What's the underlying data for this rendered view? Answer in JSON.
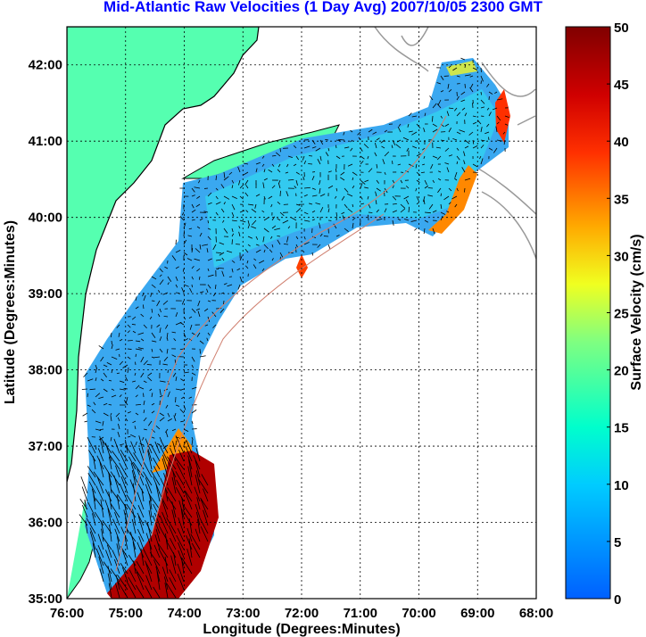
{
  "title": "Mid-Atlantic Raw Velocities (1 Day Avg) 2007/10/05 2300 GMT",
  "colors": {
    "land": "#55FFB0",
    "title": "#0000FF",
    "bathymetry": "#999999",
    "contours": "#D08070"
  },
  "chart_data": {
    "type": "heatmap",
    "title": "Mid-Atlantic Raw Velocities (1 Day Avg) 2007/10/05 2300 GMT",
    "xlabel": "Longitude (Degrees:Minutes)",
    "ylabel": "Latitude (Degrees:Minutes)",
    "xlim": [
      -76,
      -68
    ],
    "ylim": [
      35,
      42.5
    ],
    "grid": true,
    "x_ticks": [
      {
        "value": -76,
        "label": "76:00"
      },
      {
        "value": -75,
        "label": "75:00"
      },
      {
        "value": -74,
        "label": "74:00"
      },
      {
        "value": -73,
        "label": "73:00"
      },
      {
        "value": -72,
        "label": "72:00"
      },
      {
        "value": -71,
        "label": "71:00"
      },
      {
        "value": -70,
        "label": "70:00"
      },
      {
        "value": -69,
        "label": "69:00"
      },
      {
        "value": -68,
        "label": "68:00"
      }
    ],
    "y_ticks": [
      {
        "value": 35,
        "label": "35:00"
      },
      {
        "value": 36,
        "label": "36:00"
      },
      {
        "value": 37,
        "label": "37:00"
      },
      {
        "value": 38,
        "label": "38:00"
      },
      {
        "value": 39,
        "label": "39:00"
      },
      {
        "value": 40,
        "label": "40:00"
      },
      {
        "value": 41,
        "label": "41:00"
      },
      {
        "value": 42,
        "label": "42:00"
      }
    ],
    "colorbar": {
      "label": "Surface Velocity (cm/s)",
      "range": [
        0,
        50
      ],
      "ticks": [
        {
          "value": 0,
          "label": "0"
        },
        {
          "value": 5,
          "label": "5"
        },
        {
          "value": 10,
          "label": "10"
        },
        {
          "value": 15,
          "label": "15"
        },
        {
          "value": 20,
          "label": "20"
        },
        {
          "value": 25,
          "label": "25"
        },
        {
          "value": 30,
          "label": "30"
        },
        {
          "value": 35,
          "label": "35"
        },
        {
          "value": 40,
          "label": "40"
        },
        {
          "value": 45,
          "label": "45"
        },
        {
          "value": 50,
          "label": "50"
        }
      ]
    }
  }
}
